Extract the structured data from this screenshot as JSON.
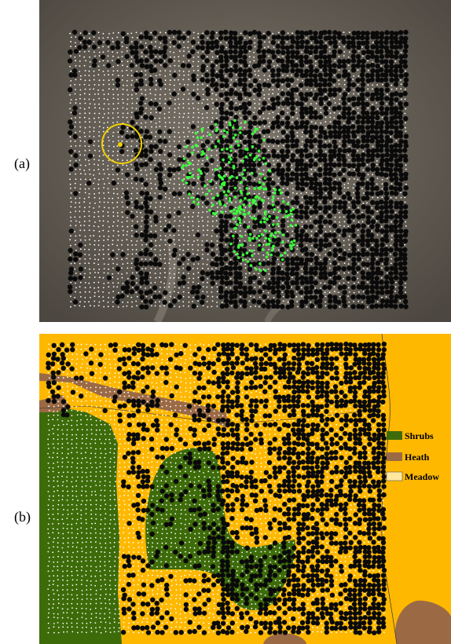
{
  "figure": {
    "panels": [
      {
        "id": "a",
        "label": "(a)",
        "kind": "satellite image with point overlay"
      },
      {
        "id": "b",
        "label": "(b)",
        "kind": "land-cover map with point overlay"
      }
    ]
  },
  "legend": {
    "items": [
      {
        "label": "Shrubs",
        "color": "#3d6b0a"
      },
      {
        "label": "Heath",
        "color": "#9b6a45"
      },
      {
        "label": "Meadow",
        "color": "#ffb800"
      }
    ]
  },
  "colors": {
    "dark_points": "#0a0a0a",
    "white_points": "#ffffff",
    "green_points": "#3cff3c",
    "highlight_circle": "#f0d000",
    "satellite_base": "#6b645c"
  }
}
